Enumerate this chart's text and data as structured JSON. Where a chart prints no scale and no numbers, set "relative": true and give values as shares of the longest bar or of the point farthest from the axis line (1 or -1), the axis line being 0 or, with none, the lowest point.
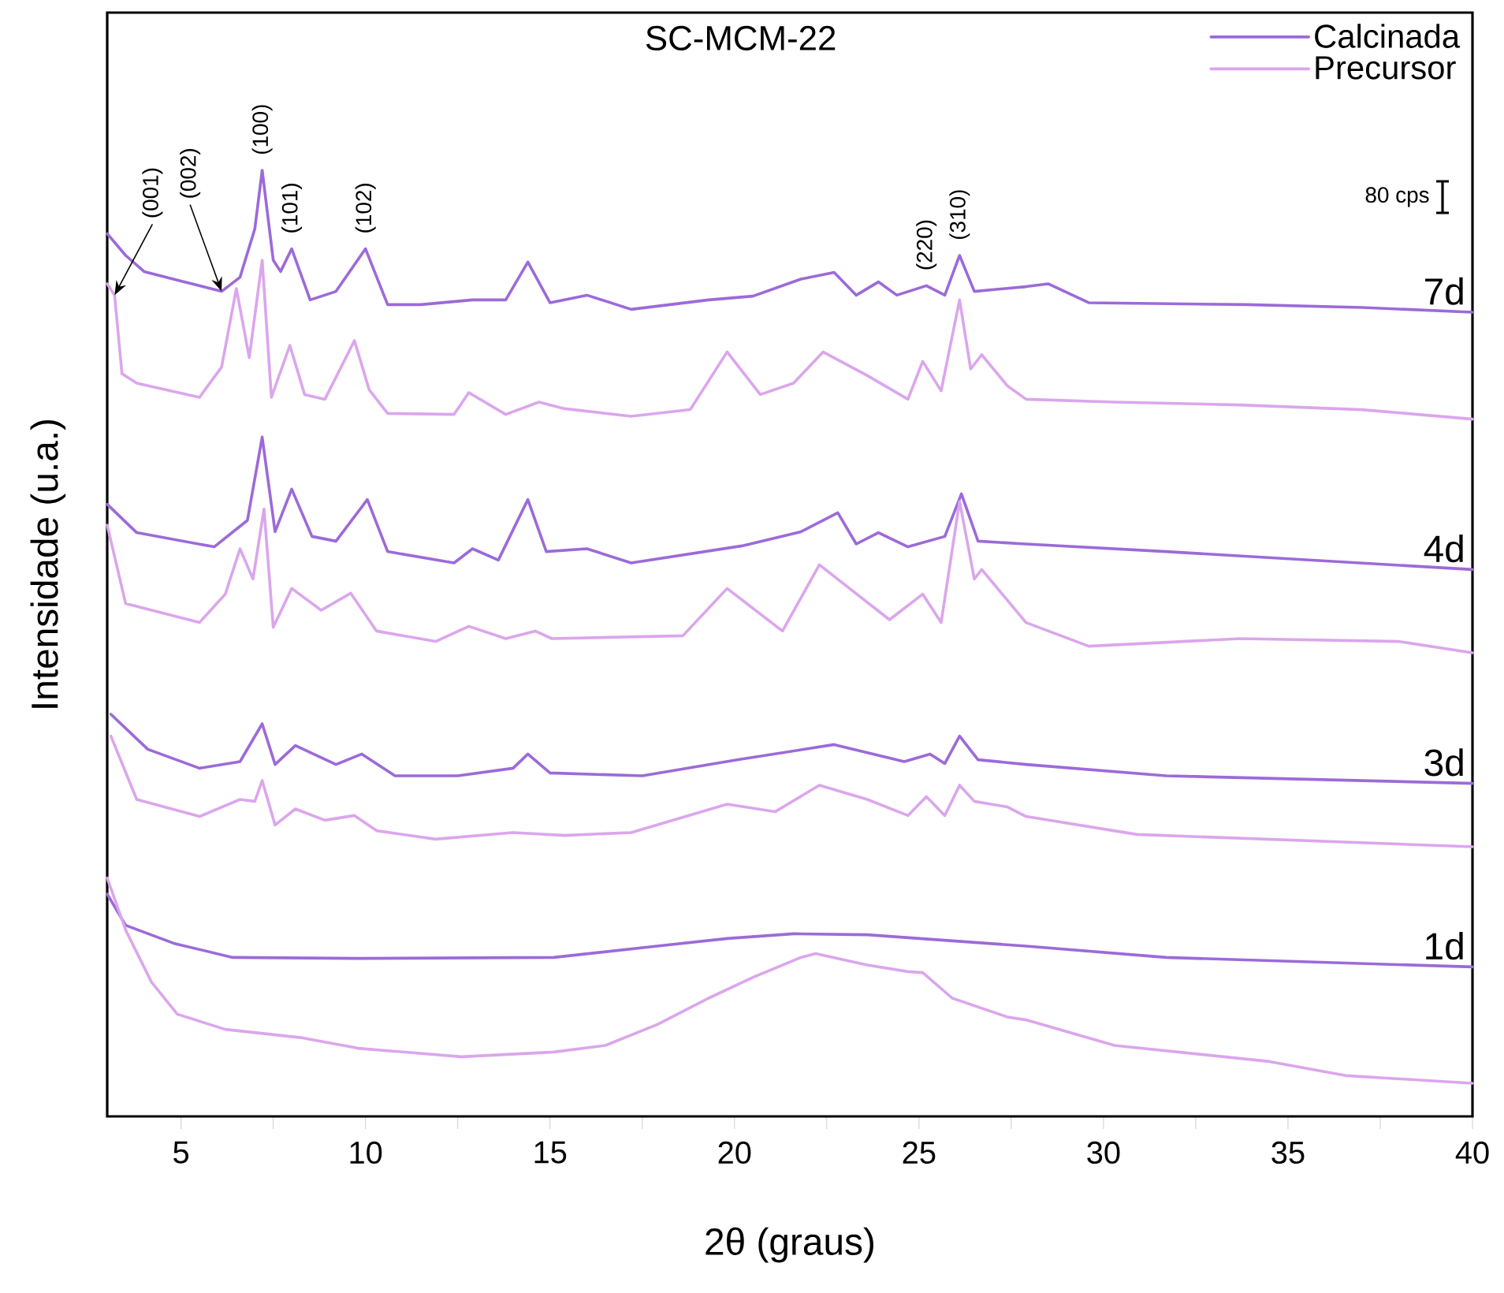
{
  "chart_data": {
    "type": "line",
    "title": "SC-MCM-22",
    "xlabel": "2θ (graus)",
    "ylabel": "Intensidade (u.a.)",
    "relative": true,
    "legend": "top right",
    "tick_labels": "x",
    "xlim": [
      3,
      40
    ],
    "xticks": [
      5,
      {
        "value": 7.5,
        "label": null
      },
      10,
      {
        "value": 12.5,
        "label": null
      },
      15,
      {
        "value": 17.5,
        "label": null
      },
      20,
      {
        "value": 22.5,
        "label": null
      },
      25,
      {
        "value": 27.5,
        "label": null
      },
      30,
      {
        "value": 32.5,
        "label": null
      },
      35,
      {
        "value": 37.5,
        "label": null
      },
      40
    ],
    "series": [
      {
        "name": "Calcinada",
        "color": "#9c6ad9",
        "x": [
          3.0,
          3.5,
          4.0,
          5.0,
          6.1,
          6.6,
          7.0,
          7.2,
          7.5,
          7.7,
          8.0,
          8.5,
          9.2,
          10.0,
          10.6,
          11.5,
          12.9,
          13.8,
          14.4,
          15.0,
          16.0,
          17.2,
          19.3,
          20.5,
          21.8,
          22.7,
          23.3,
          23.9,
          24.4,
          25.2,
          25.7,
          26.1,
          26.5,
          27.9,
          28.5,
          29.6,
          33.9,
          37.0,
          40.0
        ],
        "values": [
          0.933,
          0.91,
          0.893,
          0.883,
          0.872,
          0.887,
          0.938,
          1.0,
          0.905,
          0.893,
          0.917,
          0.863,
          0.872,
          0.917,
          0.858,
          0.858,
          0.863,
          0.863,
          0.903,
          0.86,
          0.868,
          0.853,
          0.863,
          0.867,
          0.885,
          0.892,
          0.868,
          0.882,
          0.868,
          0.878,
          0.868,
          0.91,
          0.872,
          0.877,
          0.88,
          0.86,
          0.858,
          0.855,
          0.85
        ]
      },
      {
        "name": "Precursor",
        "color": "#dba6ec",
        "x": [
          3.0,
          3.2,
          3.4,
          3.8,
          5.5,
          6.1,
          6.5,
          6.85,
          7.2,
          7.45,
          7.95,
          8.35,
          8.9,
          9.7,
          10.1,
          10.6,
          12.4,
          12.8,
          13.8,
          14.7,
          15.4,
          17.2,
          18.8,
          19.8,
          20.7,
          21.6,
          22.4,
          23.6,
          24.7,
          25.1,
          25.6,
          26.1,
          26.4,
          26.7,
          27.4,
          27.9,
          30.3,
          33.7,
          37.0,
          40.0
        ],
        "values": [
          0.88,
          0.868,
          0.785,
          0.775,
          0.76,
          0.792,
          0.875,
          0.802,
          0.905,
          0.76,
          0.815,
          0.763,
          0.758,
          0.82,
          0.768,
          0.743,
          0.742,
          0.765,
          0.742,
          0.755,
          0.748,
          0.74,
          0.747,
          0.808,
          0.763,
          0.775,
          0.808,
          0.783,
          0.758,
          0.798,
          0.767,
          0.863,
          0.79,
          0.805,
          0.772,
          0.758,
          0.755,
          0.752,
          0.747,
          0.737
        ]
      },
      {
        "color": "#9c6ad9",
        "x": [
          3.0,
          3.8,
          5.9,
          6.8,
          7.2,
          7.55,
          8.0,
          8.55,
          9.2,
          10.05,
          10.6,
          12.4,
          12.9,
          13.6,
          14.4,
          14.9,
          16.0,
          17.2,
          20.2,
          21.8,
          22.8,
          23.3,
          23.9,
          24.7,
          25.7,
          26.15,
          26.6,
          27.9,
          31.7,
          40.0
        ],
        "values": [
          0.647,
          0.617,
          0.602,
          0.63,
          0.718,
          0.618,
          0.663,
          0.613,
          0.608,
          0.652,
          0.597,
          0.585,
          0.6,
          0.588,
          0.652,
          0.597,
          0.6,
          0.585,
          0.603,
          0.618,
          0.638,
          0.605,
          0.617,
          0.602,
          0.613,
          0.658,
          0.608,
          0.605,
          0.597,
          0.578
        ]
      },
      {
        "color": "#dba6ec",
        "x": [
          3.0,
          3.5,
          5.5,
          6.2,
          6.6,
          6.95,
          7.25,
          7.5,
          8.0,
          8.8,
          9.6,
          10.3,
          11.9,
          12.8,
          13.8,
          14.6,
          15.05,
          18.6,
          19.8,
          21.3,
          22.3,
          24.2,
          25.1,
          25.6,
          26.1,
          26.5,
          26.7,
          27.9,
          29.6,
          33.7,
          38.0,
          40.0
        ],
        "values": [
          0.625,
          0.542,
          0.522,
          0.552,
          0.6,
          0.568,
          0.642,
          0.517,
          0.558,
          0.535,
          0.553,
          0.513,
          0.502,
          0.518,
          0.505,
          0.513,
          0.505,
          0.508,
          0.558,
          0.513,
          0.583,
          0.525,
          0.552,
          0.522,
          0.65,
          0.568,
          0.578,
          0.522,
          0.497,
          0.505,
          0.502,
          0.49
        ]
      },
      {
        "color": "#9c6ad9",
        "x": [
          3.1,
          4.1,
          5.5,
          6.6,
          7.2,
          7.55,
          8.1,
          9.2,
          9.9,
          10.8,
          12.5,
          14.0,
          14.4,
          15.0,
          17.5,
          20.1,
          22.7,
          24.6,
          25.3,
          25.7,
          26.1,
          26.6,
          27.9,
          31.7,
          40.0
        ],
        "values": [
          0.425,
          0.388,
          0.368,
          0.375,
          0.415,
          0.372,
          0.392,
          0.372,
          0.383,
          0.36,
          0.36,
          0.368,
          0.383,
          0.363,
          0.36,
          0.377,
          0.393,
          0.375,
          0.383,
          0.373,
          0.402,
          0.377,
          0.372,
          0.36,
          0.352
        ]
      },
      {
        "color": "#dba6ec",
        "x": [
          3.1,
          3.8,
          5.5,
          6.6,
          7.0,
          7.2,
          7.55,
          8.1,
          8.9,
          9.7,
          10.3,
          11.9,
          14.0,
          15.4,
          17.2,
          19.8,
          21.1,
          22.3,
          23.6,
          24.7,
          25.2,
          25.7,
          26.1,
          26.5,
          27.4,
          27.9,
          30.9,
          40.0
        ],
        "values": [
          0.402,
          0.335,
          0.317,
          0.335,
          0.333,
          0.355,
          0.308,
          0.325,
          0.313,
          0.318,
          0.302,
          0.293,
          0.3,
          0.297,
          0.3,
          0.33,
          0.322,
          0.35,
          0.335,
          0.318,
          0.338,
          0.318,
          0.35,
          0.333,
          0.327,
          0.317,
          0.298,
          0.285
        ]
      },
      {
        "color": "#9c6ad9",
        "x": [
          3.0,
          3.5,
          4.8,
          6.4,
          9.8,
          15.1,
          17.9,
          19.8,
          21.6,
          23.6,
          27.9,
          31.7,
          40.0
        ],
        "values": [
          0.235,
          0.202,
          0.183,
          0.168,
          0.167,
          0.168,
          0.18,
          0.188,
          0.193,
          0.192,
          0.18,
          0.168,
          0.158
        ]
      },
      {
        "color": "#dba6ec",
        "x": [
          3.0,
          3.5,
          4.2,
          4.9,
          6.2,
          8.3,
          9.8,
          12.6,
          15.1,
          16.5,
          17.9,
          19.3,
          20.5,
          21.8,
          22.2,
          23.6,
          24.7,
          25.1,
          25.9,
          27.4,
          27.9,
          30.3,
          34.5,
          36.6,
          40.0
        ],
        "values": [
          0.252,
          0.197,
          0.142,
          0.108,
          0.092,
          0.083,
          0.072,
          0.063,
          0.068,
          0.075,
          0.097,
          0.125,
          0.147,
          0.168,
          0.172,
          0.16,
          0.153,
          0.152,
          0.125,
          0.105,
          0.102,
          0.075,
          0.058,
          0.043,
          0.035
        ]
      }
    ],
    "annotations": [
      {
        "text": "(001)",
        "x": 3.2,
        "y": 0.868
      },
      {
        "text": "(002)",
        "x": 6.1,
        "y": 0.872
      },
      {
        "text": "(100)",
        "x": 7.2,
        "y": 1.0
      },
      {
        "text": "(101)",
        "x": 8.0,
        "y": 0.917
      },
      {
        "text": "(102)",
        "x": 10.0,
        "y": 0.917
      },
      {
        "text": "(220)",
        "x": 25.2,
        "y": 0.878
      },
      {
        "text": "(310)",
        "x": 26.1,
        "y": 0.91
      },
      "7d",
      "4d",
      "3d",
      "1d",
      "80 cps"
    ]
  }
}
